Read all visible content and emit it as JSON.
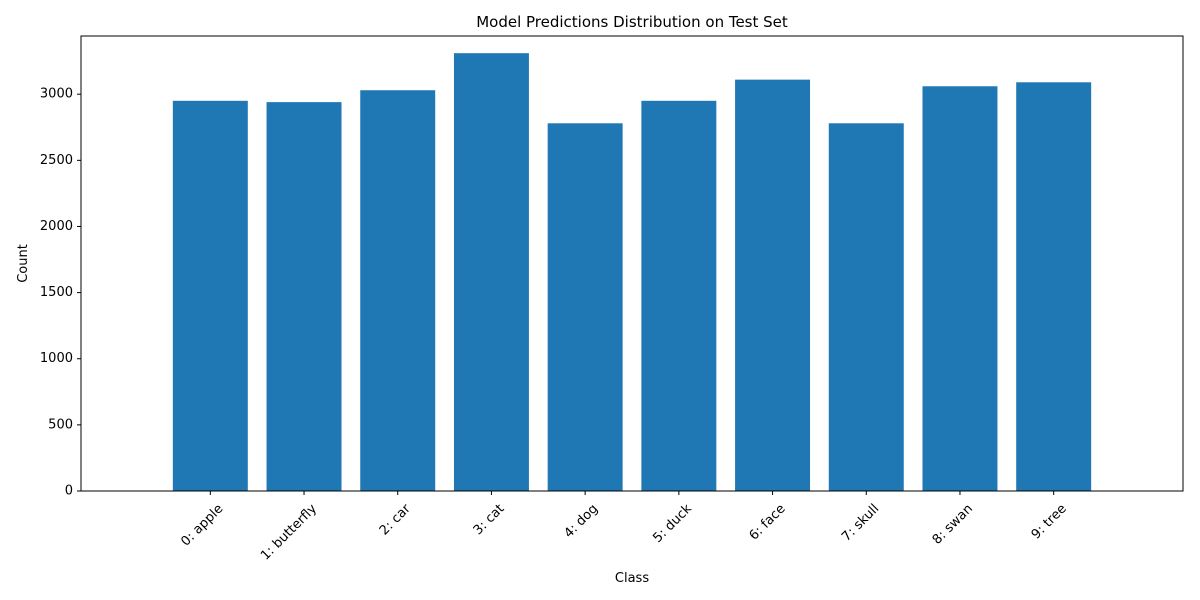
{
  "chart_data": {
    "type": "bar",
    "title": "Model Predictions Distribution on Test Set",
    "xlabel": "Class",
    "ylabel": "Count",
    "categories": [
      "0: apple",
      "1: butterfly",
      "2: car",
      "3: cat",
      "4: dog",
      "5: duck",
      "6: face",
      "7: skull",
      "8: swan",
      "9: tree"
    ],
    "values": [
      2950,
      2940,
      3030,
      3310,
      2780,
      2950,
      3110,
      2780,
      3060,
      3090
    ],
    "ylim": [
      0,
      3440
    ],
    "yticks": [
      0,
      500,
      1000,
      1500,
      2000,
      2500,
      3000
    ],
    "grid": false,
    "legend": "none",
    "bar_color": "#1f77b4",
    "xtick_rotation": 45
  }
}
